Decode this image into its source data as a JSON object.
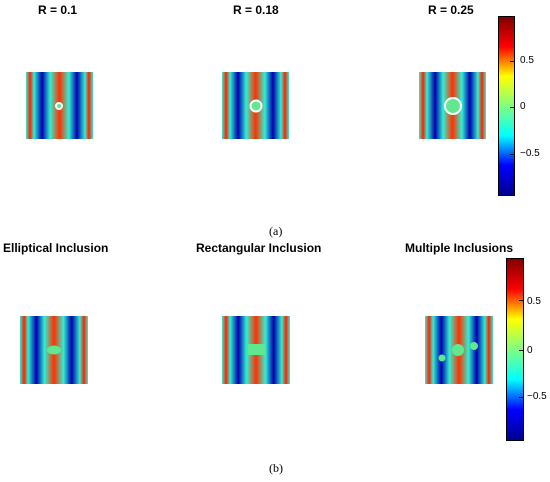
{
  "figure_a": {
    "titles": [
      "R = 0.1",
      "R = 0.18",
      "R = 0.25"
    ],
    "caption": "(a)",
    "colorbar_ticks": [
      "0.5",
      "0",
      "−0.5"
    ]
  },
  "figure_b": {
    "titles": [
      "Elliptical Inclusion",
      "Rectangular Inclusion",
      "Multiple Inclusions"
    ],
    "caption": "(b)",
    "colorbar_ticks": [
      "0.5",
      "0",
      "−0.5"
    ]
  },
  "colormap": [
    "#00008f",
    "#0000ff",
    "#00ffff",
    "#80ff80",
    "#ffff00",
    "#ff0000",
    "#800000"
  ]
}
